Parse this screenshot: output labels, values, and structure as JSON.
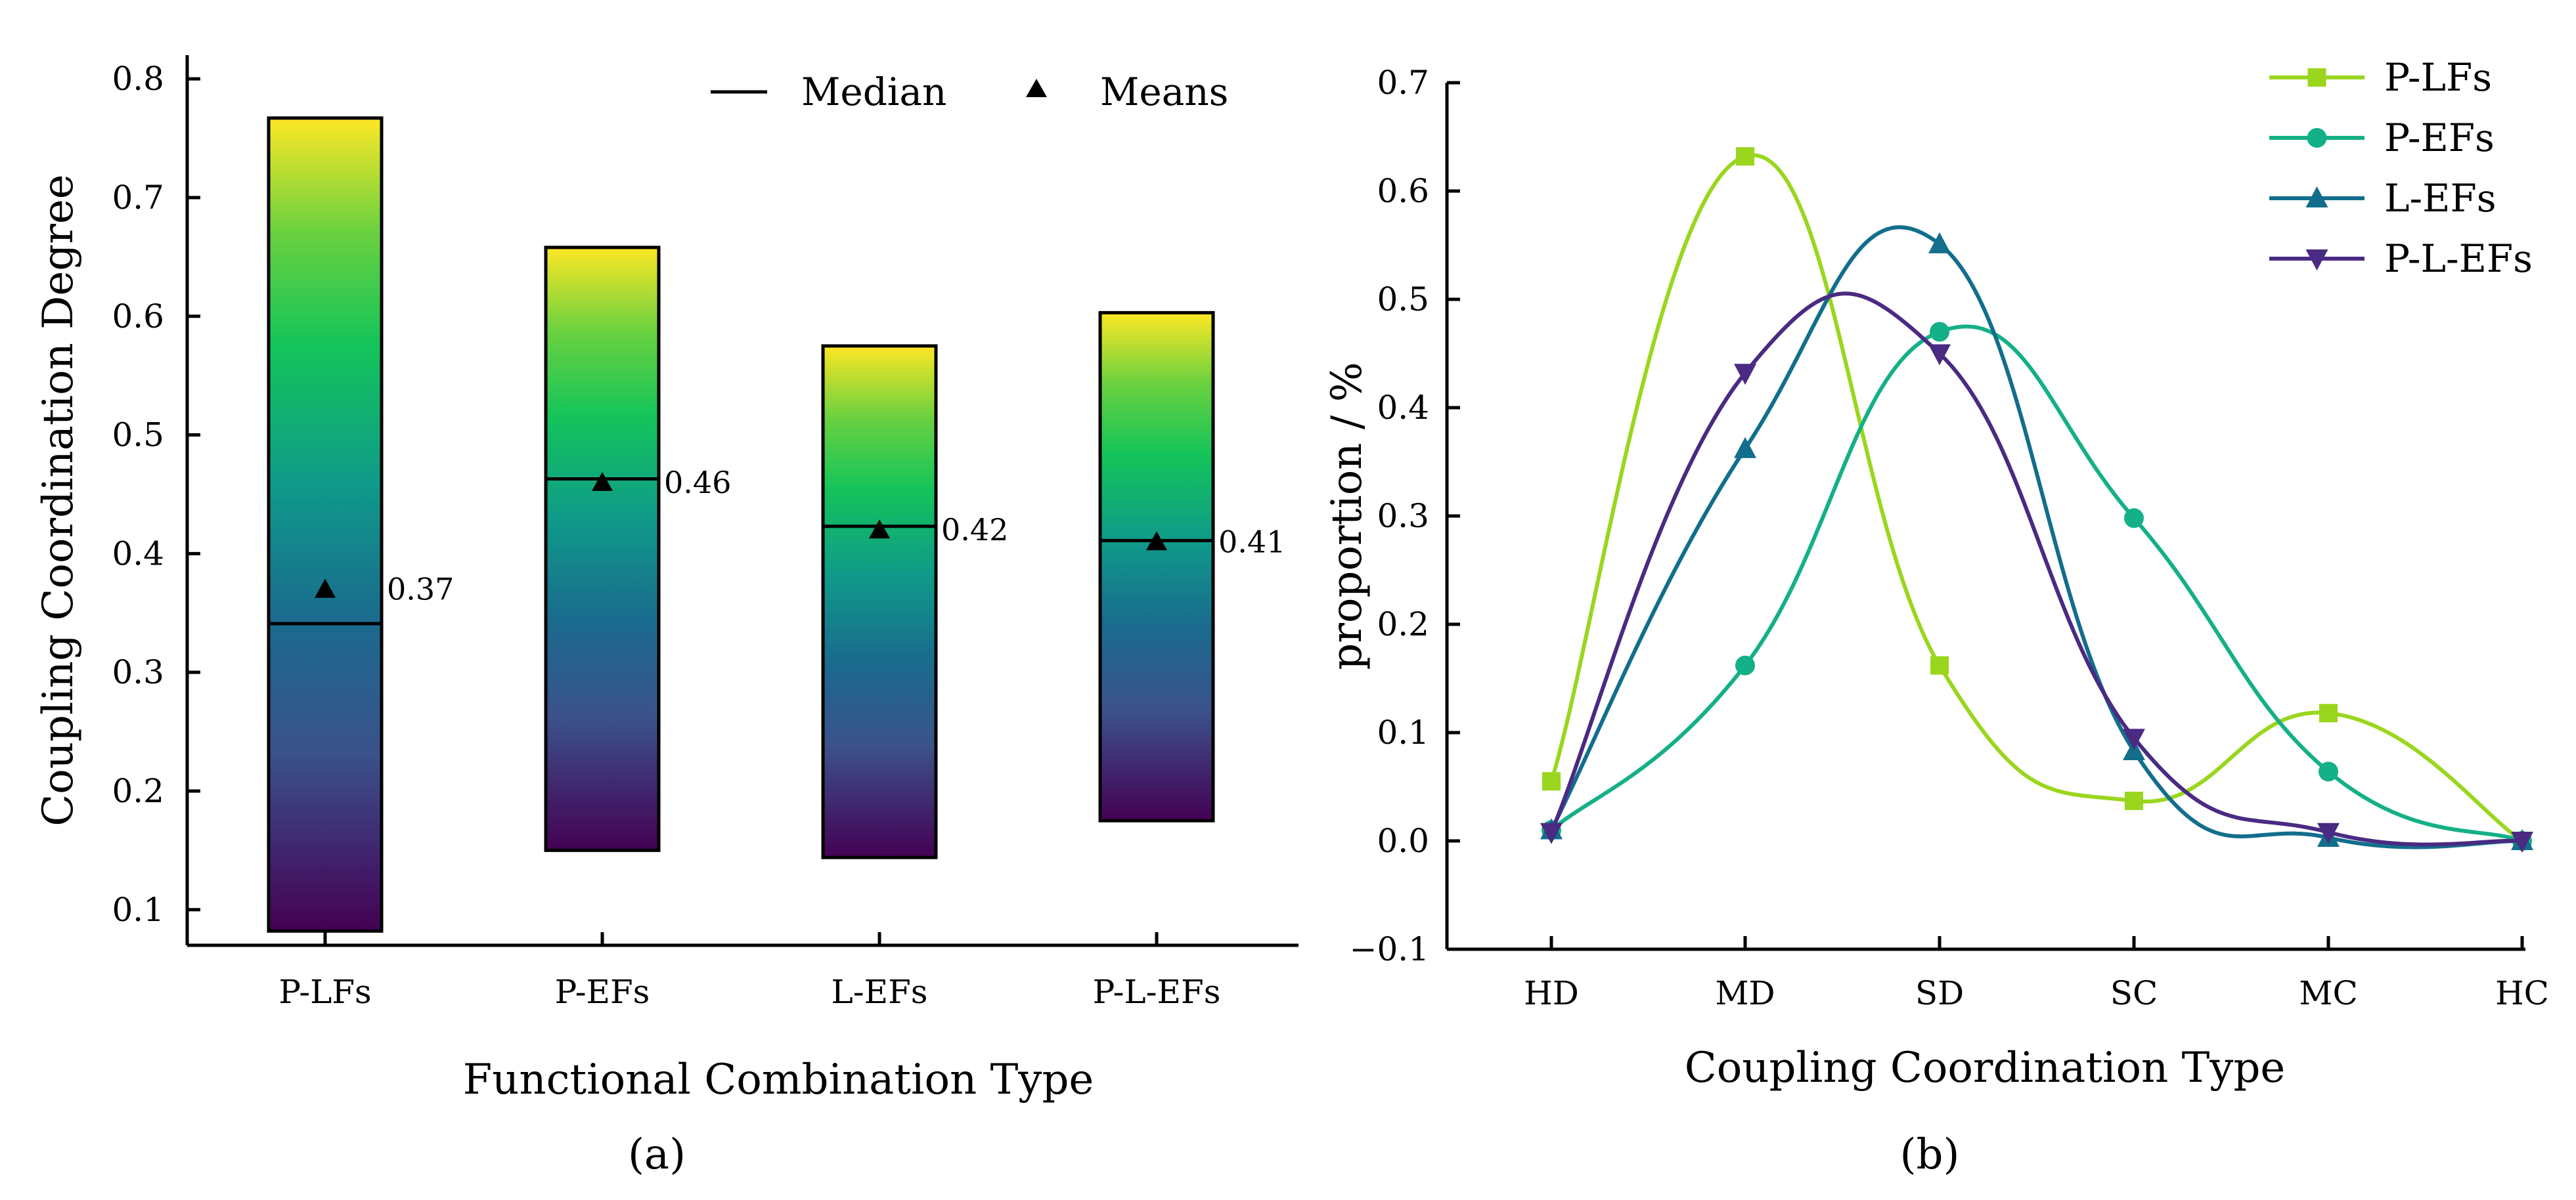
{
  "panel_labels": [
    "(a)",
    "(b)"
  ],
  "colors": {
    "viridis": [
      "#440154",
      "#3b528b",
      "#21918c",
      "#0a8f88",
      "#1fbf58",
      "#80d13f",
      "#fde725"
    ],
    "series": [
      "#9ad61e",
      "#14b087",
      "#126e8c",
      "#4a2a82"
    ]
  },
  "chart_data": [
    {
      "type": "bar",
      "subtype": "floating-range-box",
      "panel": "(a)",
      "title": "",
      "xlabel": "Functional Combination Type",
      "ylabel": "Coupling Coordination Degree",
      "ylim": [
        0.07,
        0.82
      ],
      "yticks": [
        0.1,
        0.2,
        0.3,
        0.4,
        0.5,
        0.6,
        0.7,
        0.8
      ],
      "ytick_labels": [
        "0.1",
        "0.2",
        "0.3",
        "0.4",
        "0.5",
        "0.6",
        "0.7",
        "0.8"
      ],
      "categories": [
        "P-LFs",
        "P-EFs",
        "L-EFs",
        "P-L-EFs"
      ],
      "min": [
        0.082,
        0.15,
        0.144,
        0.175
      ],
      "max": [
        0.767,
        0.658,
        0.575,
        0.603
      ],
      "median": [
        0.341,
        0.463,
        0.423,
        0.411
      ],
      "mean": [
        0.37,
        0.46,
        0.42,
        0.41
      ],
      "mean_labels": [
        "0.37",
        "0.46",
        "0.42",
        "0.41"
      ],
      "legend": {
        "position": "top-right",
        "entries": [
          "Median",
          "Means"
        ]
      }
    },
    {
      "type": "line",
      "panel": "(b)",
      "title": "",
      "xlabel": "Coupling Coordination Type",
      "ylabel": "proportion / %",
      "categories": [
        "HD",
        "MD",
        "SD",
        "SC",
        "MC",
        "HC"
      ],
      "ylim": [
        -0.1,
        0.7
      ],
      "yticks": [
        -0.1,
        0.0,
        0.1,
        0.2,
        0.3,
        0.4,
        0.5,
        0.6,
        0.7
      ],
      "ytick_labels": [
        "−0.1",
        "0.0",
        "0.1",
        "0.2",
        "0.3",
        "0.4",
        "0.5",
        "0.6",
        "0.7"
      ],
      "legend": {
        "position": "top-right"
      },
      "series": [
        {
          "name": "P-LFs",
          "marker": "square",
          "color": "#9ad61e",
          "values": [
            0.055,
            0.632,
            0.162,
            0.037,
            0.118,
            0.0
          ]
        },
        {
          "name": "P-EFs",
          "marker": "circle",
          "color": "#14b087",
          "values": [
            0.01,
            0.162,
            0.47,
            0.298,
            0.064,
            0.0
          ]
        },
        {
          "name": "L-EFs",
          "marker": "triangle-up",
          "color": "#126e8c",
          "values": [
            0.01,
            0.362,
            0.551,
            0.083,
            0.003,
            0.0
          ]
        },
        {
          "name": "P-L-EFs",
          "marker": "triangle-down",
          "color": "#4a2a82",
          "values": [
            0.008,
            0.432,
            0.45,
            0.095,
            0.008,
            0.0
          ]
        }
      ]
    }
  ]
}
